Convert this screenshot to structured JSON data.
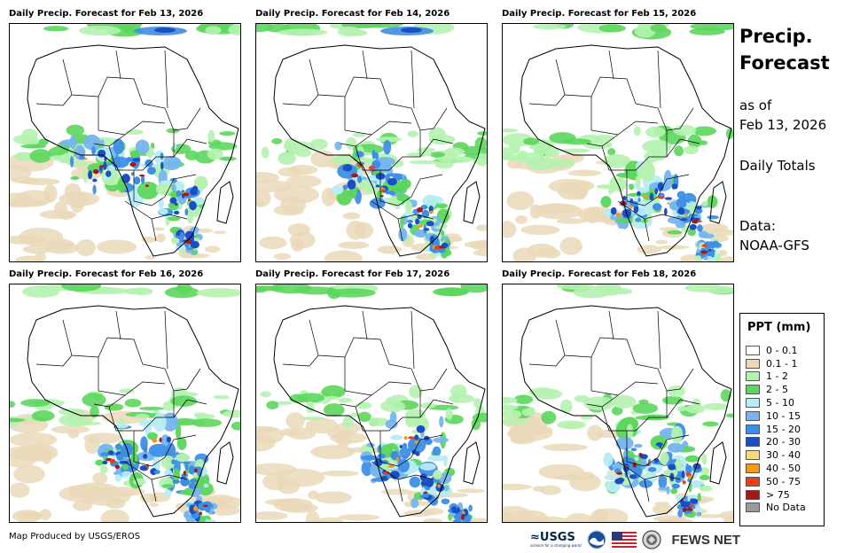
{
  "panels": [
    {
      "title": "Daily Precip. Forecast for Feb 13, 2026"
    },
    {
      "title": "Daily Precip. Forecast for Feb 14, 2026"
    },
    {
      "title": "Daily Precip. Forecast for Feb 15, 2026"
    },
    {
      "title": "Daily Precip. Forecast for Feb 16, 2026"
    },
    {
      "title": "Daily Precip. Forecast for Feb 17, 2026"
    },
    {
      "title": "Daily Precip. Forecast for Feb 18, 2026"
    }
  ],
  "side": {
    "title_line1": "Precip.",
    "title_line2": "Forecast",
    "as_of_line1": "as of",
    "as_of_line2": "Feb 13, 2026",
    "totals": "Daily Totals",
    "data_line1": "Data:",
    "data_line2": "NOAA-GFS"
  },
  "legend": {
    "title": "PPT (mm)",
    "items": [
      {
        "label": "0 - 0.1",
        "color": "#ffffff"
      },
      {
        "label": "0.1 - 1",
        "color": "#ead9b8"
      },
      {
        "label": "1 - 2",
        "color": "#b5f2b0"
      },
      {
        "label": "2 - 5",
        "color": "#5cd65c"
      },
      {
        "label": "5 - 10",
        "color": "#b8ecf5"
      },
      {
        "label": "10 - 15",
        "color": "#76b5ef"
      },
      {
        "label": "15 - 20",
        "color": "#3e8ee6"
      },
      {
        "label": "20 - 30",
        "color": "#1a4fc4"
      },
      {
        "label": "30 - 40",
        "color": "#f5dc7a"
      },
      {
        "label": "40 - 50",
        "color": "#f29a1c"
      },
      {
        "label": "50 - 75",
        "color": "#e8401a"
      },
      {
        "label": "> 75",
        "color": "#a31818"
      },
      {
        "label": "No Data",
        "color": "#9a9a9a"
      }
    ]
  },
  "footer": {
    "credit": "Map Produced by USGS/EROS",
    "usgs": "≈USGS",
    "usgs_tagline": "science for a changing world",
    "fewsnet": "FEWS NET"
  }
}
